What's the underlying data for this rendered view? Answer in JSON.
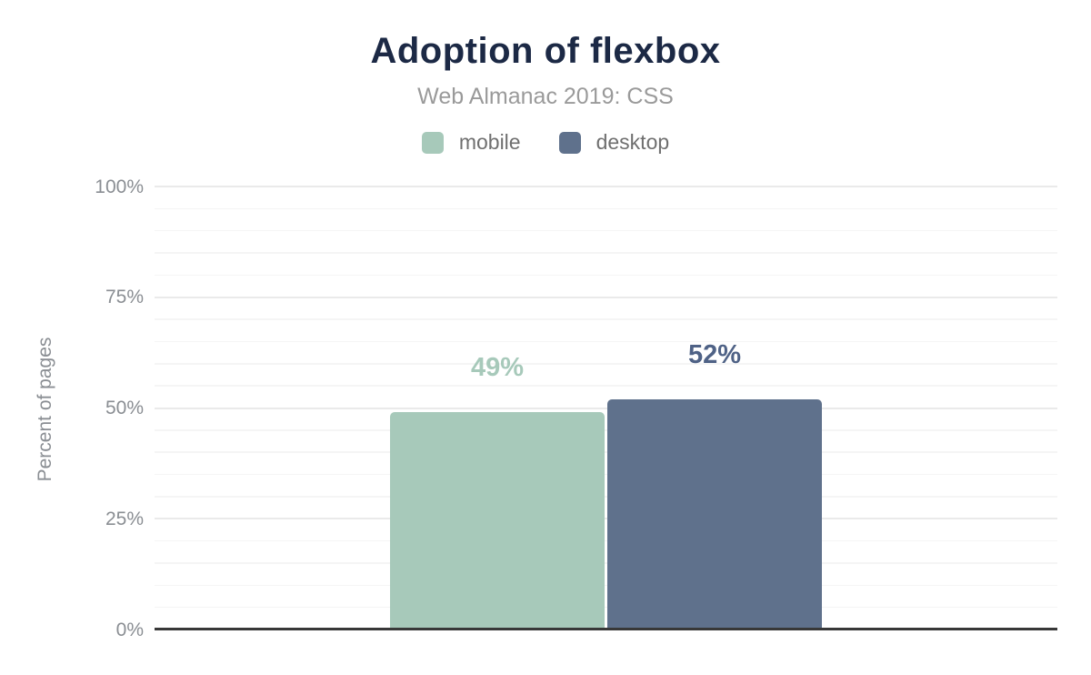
{
  "chart_data": {
    "type": "bar",
    "title": "Adoption of flexbox",
    "subtitle": "Web Almanac 2019: CSS",
    "ylabel": "Percent of pages",
    "xlabel": "",
    "ylim": [
      0,
      100
    ],
    "yticks": [
      0,
      25,
      50,
      75,
      100
    ],
    "ytick_labels": [
      "0%",
      "25%",
      "50%",
      "75%",
      "100%"
    ],
    "minor_gridline_step": 5,
    "grid": true,
    "legend_position": "top",
    "series": [
      {
        "name": "mobile",
        "value": 49,
        "data_label": "49%",
        "color": "#a7c9ba",
        "label_color": "#a7c9ba"
      },
      {
        "name": "desktop",
        "value": 52,
        "data_label": "52%",
        "color": "#5f718c",
        "label_color": "#4f6286"
      }
    ],
    "colors": {
      "title": "#1c2945",
      "subtitle": "#9a9a9a",
      "legend_text": "#6f6f6f",
      "tick_text": "#8a8e93",
      "grid_major": "#eaeaea",
      "grid_minor": "#f5f5f5",
      "axis_line": "#383838",
      "background": "#ffffff"
    }
  }
}
